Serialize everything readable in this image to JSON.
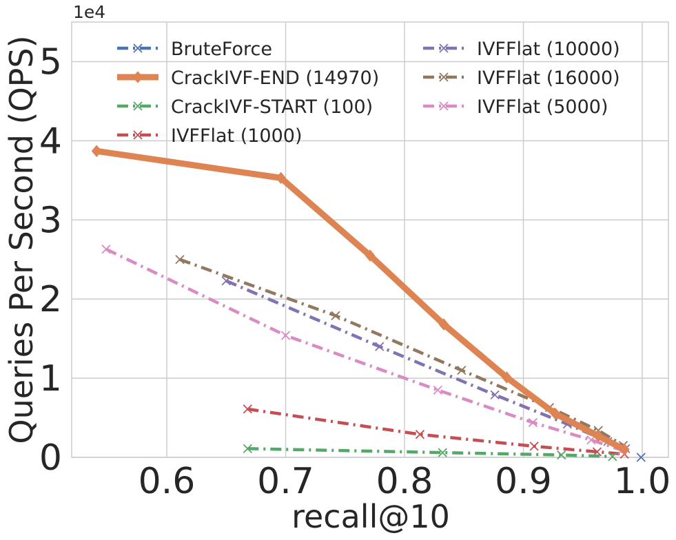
{
  "chart_data": {
    "type": "line",
    "title": "",
    "xlabel": "recall@10",
    "ylabel": "Queries Per Second (QPS)",
    "y_offset_label": "1e4",
    "xlim": [
      0.52,
      1.022
    ],
    "ylim": [
      0,
      5.5
    ],
    "x_ticks": [
      0.6,
      0.7,
      0.8,
      0.9,
      1.0
    ],
    "x_tick_labels": [
      "0.6",
      "0.7",
      "0.8",
      "0.9",
      "1.0"
    ],
    "y_ticks": [
      0,
      1,
      2,
      3,
      4,
      5
    ],
    "y_tick_labels": [
      "0",
      "1",
      "2",
      "3",
      "4",
      "5"
    ],
    "grid": true,
    "legend_position": "top",
    "series": [
      {
        "name": "BruteForce",
        "color": "#4c72b0",
        "line_style": "dashdot",
        "marker": "x",
        "x": [
          0.999
        ],
        "y": [
          0.0
        ]
      },
      {
        "name": "CrackIVF-END (14970)",
        "color": "#dd8452",
        "line_style": "solid",
        "marker": "diamond",
        "x": [
          0.541,
          0.696,
          0.771,
          0.833,
          0.886,
          0.927,
          0.963,
          0.985
        ],
        "y": [
          3.87,
          3.53,
          2.55,
          1.68,
          1.01,
          0.55,
          0.27,
          0.1
        ]
      },
      {
        "name": "CrackIVF-START (100)",
        "color": "#55a868",
        "line_style": "dashdot",
        "marker": "x",
        "x": [
          0.668,
          0.832,
          0.932,
          0.975
        ],
        "y": [
          0.11,
          0.06,
          0.03,
          0.01
        ]
      },
      {
        "name": "IVFFlat (1000)",
        "color": "#c44e52",
        "line_style": "dashdot",
        "marker": "x",
        "x": [
          0.668,
          0.813,
          0.909,
          0.962,
          0.985
        ],
        "y": [
          0.61,
          0.29,
          0.14,
          0.07,
          0.04
        ]
      },
      {
        "name": "IVFFlat (10000)",
        "color": "#8172b3",
        "line_style": "dashdot",
        "marker": "x",
        "x": [
          0.65,
          0.779,
          0.876,
          0.937,
          0.971,
          0.986
        ],
        "y": [
          2.23,
          1.4,
          0.79,
          0.42,
          0.2,
          0.11
        ]
      },
      {
        "name": "IVFFlat (16000)",
        "color": "#937860",
        "line_style": "dashdot",
        "marker": "x",
        "x": [
          0.611,
          0.742,
          0.848,
          0.922,
          0.963,
          0.984
        ],
        "y": [
          2.5,
          1.79,
          1.1,
          0.63,
          0.34,
          0.15
        ]
      },
      {
        "name": "IVFFlat (5000)",
        "color": "#da8bc3",
        "line_style": "dashdot",
        "marker": "x",
        "x": [
          0.549,
          0.7,
          0.828,
          0.908,
          0.957,
          0.983
        ],
        "y": [
          2.63,
          1.54,
          0.85,
          0.44,
          0.22,
          0.09
        ]
      }
    ]
  }
}
